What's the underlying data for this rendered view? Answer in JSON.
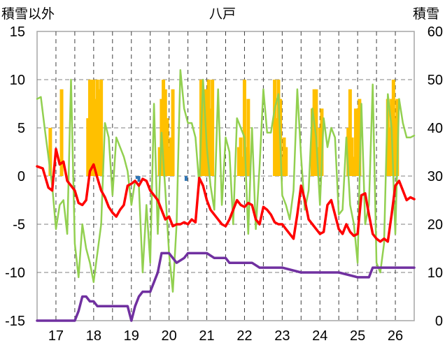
{
  "chart_data": {
    "type": "line",
    "title": "八戸",
    "left_axis_label": "積雪以外",
    "right_axis_label": "積雪",
    "left_ylim": [
      -15,
      15
    ],
    "left_ticks": [
      "15",
      "10",
      "5",
      "0",
      "-5",
      "-10",
      "-15"
    ],
    "right_ylim": [
      0,
      60
    ],
    "right_ticks": [
      "60",
      "50",
      "40",
      "30",
      "20",
      "10",
      "0"
    ],
    "xlim": [
      16.5,
      26.5
    ],
    "x_ticks": [
      "17",
      "18",
      "19",
      "20",
      "21",
      "22",
      "23",
      "24",
      "25",
      "26"
    ],
    "grid": true,
    "colors": {
      "temperature": "#ff0000",
      "humidity_like": "#92d050",
      "precipitation": "#ffc000",
      "snow_depth": "#7030a0",
      "negative_bar": "#2e75b6"
    },
    "series": [
      {
        "name": "",
        "kind": "line",
        "axis": "left",
        "color_key": "temperature",
        "x": [
          16.5,
          16.65,
          16.8,
          16.9,
          17.0,
          17.1,
          17.2,
          17.3,
          17.4,
          17.5,
          17.6,
          17.7,
          17.8,
          17.9,
          18.0,
          18.1,
          18.2,
          18.3,
          18.4,
          18.5,
          18.6,
          18.7,
          18.8,
          18.9,
          19.0,
          19.1,
          19.2,
          19.3,
          19.4,
          19.5,
          19.6,
          19.7,
          19.8,
          19.9,
          20.0,
          20.1,
          20.2,
          20.3,
          20.4,
          20.5,
          20.6,
          20.7,
          20.8,
          20.9,
          21.0,
          21.1,
          21.2,
          21.3,
          21.4,
          21.5,
          21.6,
          21.7,
          21.8,
          21.9,
          22.0,
          22.1,
          22.2,
          22.3,
          22.4,
          22.5,
          22.6,
          22.7,
          22.8,
          22.9,
          23.0,
          23.1,
          23.2,
          23.3,
          23.4,
          23.5,
          23.6,
          23.7,
          23.8,
          23.9,
          24.0,
          24.1,
          24.2,
          24.3,
          24.4,
          24.5,
          24.6,
          24.7,
          24.8,
          24.9,
          25.0,
          25.1,
          25.2,
          25.3,
          25.4,
          25.5,
          25.6,
          25.7,
          25.8,
          25.9,
          26.0,
          26.1,
          26.2,
          26.3,
          26.4,
          26.5
        ],
        "y": [
          1.0,
          0.8,
          -1.2,
          -1.5,
          2.8,
          1.2,
          1.5,
          -0.5,
          -1.0,
          -1.5,
          -2.8,
          -3.0,
          -2.5,
          0.5,
          1.2,
          -0.2,
          -1.5,
          -2.2,
          -3.2,
          -3.8,
          -4.2,
          -3.5,
          -3.0,
          -1.0,
          -0.8,
          -0.5,
          -1.0,
          -0.3,
          -0.5,
          -1.5,
          -2.0,
          -2.5,
          -3.5,
          -4.5,
          -4.2,
          -5.2,
          -5.0,
          -5.0,
          -4.8,
          -5.0,
          -4.5,
          -4.8,
          -0.2,
          -1.0,
          -2.5,
          -3.5,
          -4.0,
          -4.5,
          -5.0,
          -5.2,
          -4.5,
          -3.5,
          -2.5,
          -3.0,
          -3.2,
          -2.8,
          -3.0,
          -4.5,
          -5.0,
          -3.2,
          -3.5,
          -4.0,
          -4.8,
          -5.0,
          -5.0,
          -5.5,
          -6.0,
          -6.5,
          -4.0,
          -1.0,
          -2.5,
          -4.5,
          -5.0,
          -5.5,
          -6.0,
          -5.8,
          -3.0,
          -2.5,
          -4.0,
          -5.5,
          -6.0,
          -5.0,
          -5.8,
          -6.2,
          -6.0,
          -2.0,
          -1.8,
          -4.0,
          -6.0,
          -6.5,
          -6.8,
          -6.5,
          -6.8,
          -4.0,
          -1.0,
          -0.5,
          -1.5,
          -2.5,
          -2.2,
          -2.4
        ]
      },
      {
        "name": "",
        "kind": "line",
        "axis": "left",
        "color_key": "humidity_like",
        "x": [
          16.5,
          16.6,
          16.7,
          16.8,
          16.9,
          17.0,
          17.1,
          17.2,
          17.3,
          17.4,
          17.5,
          17.6,
          17.7,
          17.8,
          17.9,
          18.0,
          18.1,
          18.2,
          18.3,
          18.4,
          18.5,
          18.6,
          18.7,
          18.8,
          18.9,
          19.0,
          19.1,
          19.2,
          19.3,
          19.4,
          19.5,
          19.6,
          19.7,
          19.8,
          19.9,
          20.0,
          20.1,
          20.2,
          20.3,
          20.4,
          20.5,
          20.6,
          20.7,
          20.8,
          20.9,
          21.0,
          21.1,
          21.2,
          21.3,
          21.4,
          21.5,
          21.6,
          21.7,
          21.8,
          21.9,
          22.0,
          22.1,
          22.2,
          22.3,
          22.4,
          22.5,
          22.6,
          22.7,
          22.8,
          22.9,
          23.0,
          23.1,
          23.2,
          23.3,
          23.4,
          23.5,
          23.6,
          23.7,
          23.8,
          23.9,
          24.0,
          24.1,
          24.2,
          24.3,
          24.4,
          24.5,
          24.6,
          24.7,
          24.8,
          24.9,
          25.0,
          25.1,
          25.2,
          25.3,
          25.4,
          25.5,
          25.6,
          25.7,
          25.8,
          25.9,
          26.0,
          26.1,
          26.2,
          26.3,
          26.4,
          26.5
        ],
        "y": [
          8.0,
          8.2,
          5.0,
          2.0,
          -1.0,
          -5.5,
          -3.0,
          -2.5,
          -6.0,
          10.0,
          -7.0,
          -10.5,
          -5.0,
          -7.5,
          -9.0,
          -11.0,
          -8.0,
          -5.0,
          5.5,
          4.0,
          -2.0,
          4.0,
          3.0,
          2.0,
          0.5,
          -3.0,
          -0.5,
          -1.0,
          -10.0,
          -3.0,
          -9.0,
          7.5,
          -6.0,
          4.5,
          -1.5,
          -8.0,
          -12.0,
          -5.0,
          11.0,
          7.0,
          5.5,
          5.5,
          4.0,
          -1.0,
          10.0,
          3.0,
          -1.0,
          -3.5,
          9.0,
          -3.0,
          4.0,
          2.5,
          -5.0,
          6.0,
          5.0,
          4.0,
          -6.0,
          5.0,
          -5.5,
          1.0,
          9.0,
          4.5,
          4.5,
          7.0,
          8.5,
          -2.0,
          -3.0,
          -4.5,
          -1.5,
          9.0,
          2.0,
          -3.5,
          -1.5,
          7.0,
          4.0,
          -3.0,
          6.0,
          3.0,
          5.0,
          4.0,
          -4.0,
          -3.5,
          4.0,
          -3.0,
          -5.0,
          -9.0,
          7.5,
          -5.0,
          -3.0,
          9.5,
          -9.0,
          -10.0,
          -7.0,
          8.5,
          5.0,
          -6.0,
          8.0,
          5.5,
          4.0,
          4.0,
          4.2
        ]
      },
      {
        "name": "",
        "kind": "step",
        "axis": "right",
        "color_key": "snow_depth",
        "x": [
          16.5,
          17.5,
          17.6,
          17.7,
          17.8,
          17.9,
          18.0,
          18.1,
          18.2,
          18.9,
          19.0,
          19.1,
          19.2,
          19.3,
          19.5,
          19.6,
          19.7,
          19.8,
          20.0,
          20.2,
          20.4,
          20.5,
          21.0,
          21.2,
          21.5,
          21.6,
          21.7,
          22.0,
          22.2,
          22.4,
          22.8,
          23.0,
          23.5,
          24.0,
          24.5,
          25.0,
          25.2,
          25.3,
          25.4,
          25.5,
          26.0,
          26.5
        ],
        "y": [
          0,
          0,
          2,
          5,
          5,
          4,
          4,
          3,
          3,
          3,
          0,
          3,
          5,
          6,
          6,
          8,
          10,
          14,
          14,
          12,
          13,
          14,
          14,
          13,
          13,
          12,
          12,
          12,
          12,
          11,
          11,
          11,
          10,
          10,
          10,
          9,
          9,
          9,
          11,
          11,
          11,
          11
        ]
      }
    ],
    "bars": {
      "axis": "left",
      "color_key": "precipitation",
      "x": [
        16.85,
        17.15,
        17.85,
        17.9,
        17.95,
        18.0,
        18.05,
        18.1,
        18.15,
        18.2,
        19.75,
        19.8,
        19.85,
        19.9,
        19.95,
        20.0,
        20.05,
        20.1,
        20.85,
        20.9,
        20.95,
        21.0,
        21.05,
        21.1,
        21.15,
        21.85,
        21.9,
        21.95,
        22.0,
        22.05,
        22.1,
        22.8,
        22.85,
        22.9,
        22.95,
        23.0,
        23.05,
        23.1,
        23.8,
        23.85,
        23.9,
        23.95,
        24.0,
        24.05,
        24.75,
        24.8,
        24.85,
        24.9,
        24.95,
        25.0,
        25.05,
        25.8,
        25.85,
        25.9,
        25.95,
        26.0,
        26.05
      ],
      "y": [
        5,
        9,
        6,
        10,
        10,
        10,
        8,
        10,
        9,
        10,
        3,
        8,
        10,
        9,
        6,
        3,
        4,
        9,
        10,
        8,
        9,
        9,
        10,
        7,
        10,
        3,
        4,
        2,
        10,
        3,
        8,
        10,
        6,
        10,
        8,
        2,
        4,
        3,
        7,
        9,
        9,
        3,
        5,
        7,
        5,
        9,
        4,
        2,
        7,
        7,
        8,
        8,
        5,
        8,
        10,
        6,
        8
      ]
    },
    "negative_bars": {
      "axis": "left",
      "color_key": "negative_bar",
      "x": [
        16.9,
        19.15,
        19.2,
        20.45
      ],
      "y": [
        -0.5,
        -0.3,
        -0.6,
        -0.5
      ]
    }
  }
}
